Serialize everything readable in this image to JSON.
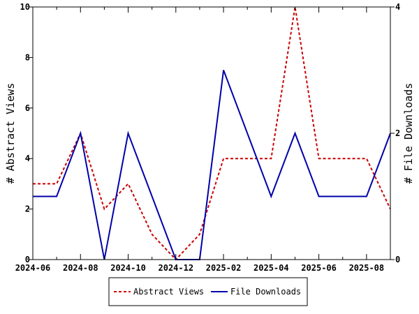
{
  "chart_data": {
    "type": "line",
    "x_ticks": [
      "2024-06",
      "2024-08",
      "2024-10",
      "2024-12",
      "2025-02",
      "2025-04",
      "2025-06",
      "2025-08"
    ],
    "x": [
      "2024-06",
      "2024-07",
      "2024-08",
      "2024-09",
      "2024-10",
      "2024-11",
      "2024-12",
      "2025-01",
      "2025-02",
      "2025-03",
      "2025-04",
      "2025-05",
      "2025-06",
      "2025-07",
      "2025-08",
      "2025-09"
    ],
    "ylabel_left": "# Abstract Views",
    "ylabel_right": "# File Downloads",
    "ylim_left": [
      0,
      10
    ],
    "ylim_right": [
      0,
      4
    ],
    "yticks_left": [
      "0",
      "2",
      "4",
      "6",
      "8",
      "10"
    ],
    "yticks_right": [
      "0",
      "2",
      "4"
    ],
    "grid": false,
    "legend_position": "bottom",
    "series": [
      {
        "name": "Abstract Views",
        "axis": "left",
        "color": "#cc0000",
        "style": "dashed",
        "values": [
          3,
          3,
          5,
          2,
          3,
          1,
          0,
          1,
          4,
          4,
          4,
          10,
          4,
          4,
          4,
          2
        ]
      },
      {
        "name": "File Downloads",
        "axis": "right",
        "color": "#0000aa",
        "style": "solid",
        "values": [
          1,
          1,
          2,
          0,
          2,
          1,
          0,
          0,
          3,
          2,
          1,
          2,
          1,
          1,
          1,
          2
        ]
      }
    ]
  }
}
